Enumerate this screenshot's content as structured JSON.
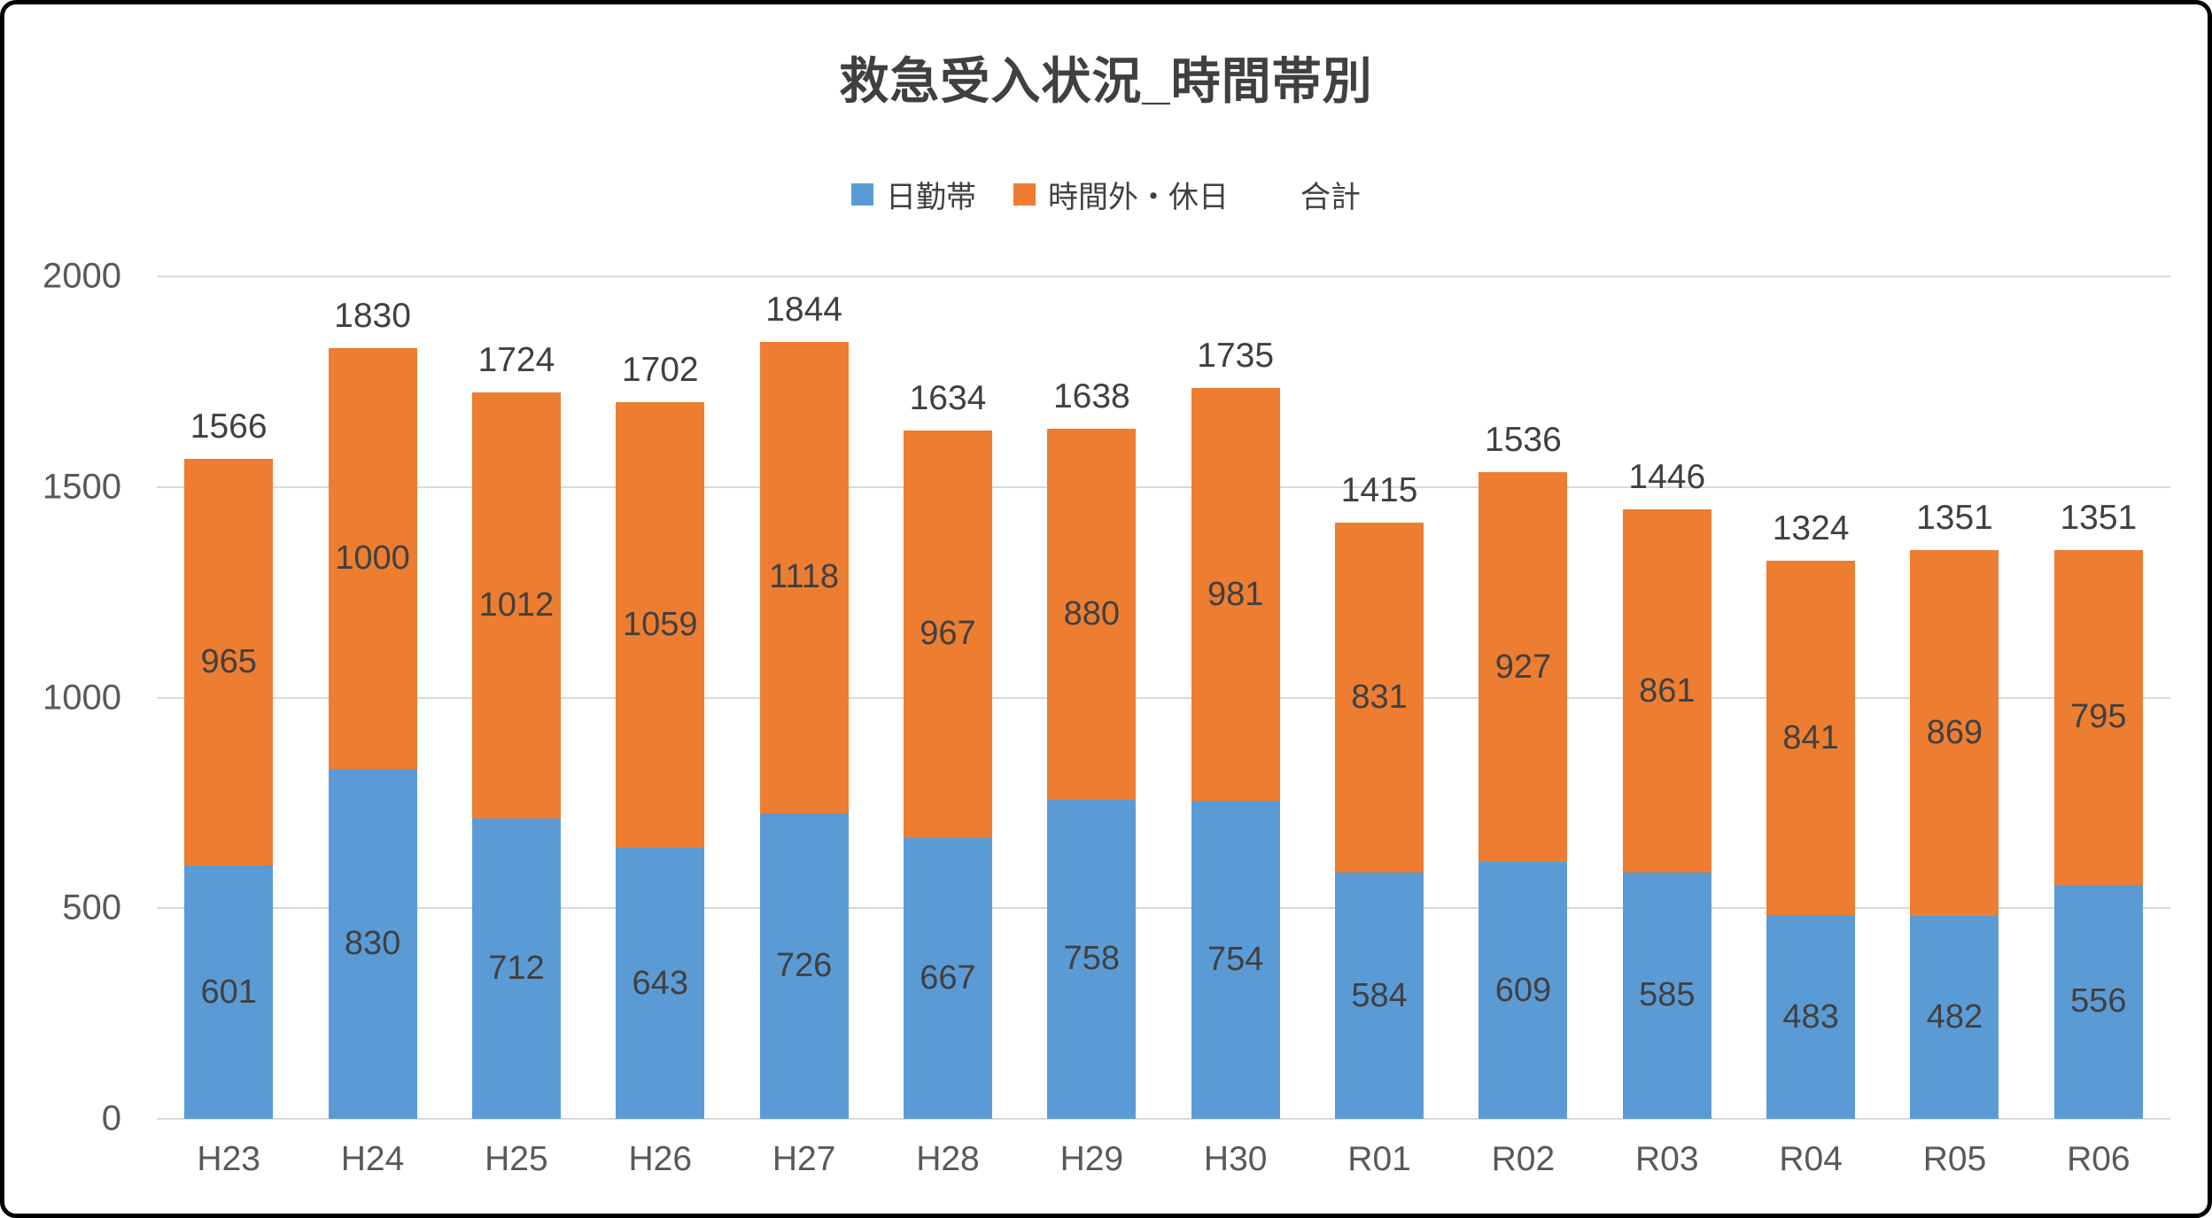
{
  "title": "救急受入状況_時間帯別",
  "legend": {
    "items": [
      {
        "label": "日勤帯",
        "color": "#5B9BD5"
      },
      {
        "label": "時間外・休日",
        "color": "#ED7D31"
      },
      {
        "label": "合計",
        "color": "transparent"
      }
    ]
  },
  "colors": {
    "dayshift": "#5B9BD5",
    "overtime": "#ED7D31",
    "label_text": "#404040",
    "axis_text": "#595959",
    "gridline": "#D9D9D9"
  },
  "chart_data": {
    "type": "bar",
    "stacked": true,
    "title": "救急受入状況_時間帯別",
    "categories": [
      "H23",
      "H24",
      "H25",
      "H26",
      "H27",
      "H28",
      "H29",
      "H30",
      "R01",
      "R02",
      "R03",
      "R04",
      "R05",
      "R06"
    ],
    "series": [
      {
        "name": "日勤帯",
        "color": "#5B9BD5",
        "values": [
          601,
          830,
          712,
          643,
          726,
          667,
          758,
          754,
          584,
          609,
          585,
          483,
          482,
          556
        ]
      },
      {
        "name": "時間外・休日",
        "color": "#ED7D31",
        "values": [
          965,
          1000,
          1012,
          1059,
          1118,
          967,
          880,
          981,
          831,
          927,
          861,
          841,
          869,
          795
        ]
      }
    ],
    "totals": [
      1566,
      1830,
      1724,
      1702,
      1844,
      1634,
      1638,
      1735,
      1415,
      1536,
      1446,
      1324,
      1351,
      1351
    ],
    "totals_series_name": "合計",
    "xlabel": "",
    "ylabel": "",
    "ylim": [
      0,
      2000
    ],
    "yticks": [
      0,
      500,
      1000,
      1500,
      2000
    ],
    "grid": true,
    "legend_position": "top",
    "data_labels": true
  }
}
